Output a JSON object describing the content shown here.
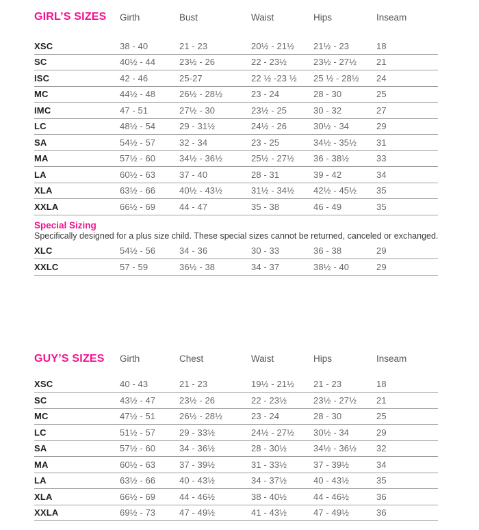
{
  "colors": {
    "accent_pink": "#f2108f",
    "column_header_gray": "#55565a",
    "data_gray": "#66676b",
    "size_label_black": "#1f1f1f",
    "rule_gray": "#9c9c9c"
  },
  "girls_table": {
    "title": "GIRL’S SIZES",
    "columns": [
      "Girth",
      "Bust",
      "Waist",
      "Hips",
      "Inseam"
    ],
    "rows": [
      {
        "size": "XSC",
        "values": [
          "38 - 40",
          "21 - 23",
          "20½ - 21½",
          "21½ - 23",
          "18"
        ]
      },
      {
        "size": "SC",
        "values": [
          "40½ - 44",
          "23½ - 26",
          "22 - 23½",
          "23½ - 27½",
          "21"
        ]
      },
      {
        "size": "ISC",
        "values": [
          "42 - 46",
          "25-27",
          "22 ½ -23 ½",
          "25 ½ - 28½",
          "24"
        ]
      },
      {
        "size": "MC",
        "values": [
          "44½ - 48",
          "26½ - 28½",
          "23 - 24",
          "28 - 30",
          "25"
        ]
      },
      {
        "size": "IMC",
        "values": [
          "47 - 51",
          "27½ - 30",
          "23½ - 25",
          "30 - 32",
          "27"
        ]
      },
      {
        "size": "LC",
        "values": [
          "48½ - 54",
          "29 - 31½",
          "24½ - 26",
          "30½ - 34",
          "29"
        ]
      },
      {
        "size": "SA",
        "values": [
          "54½ - 57",
          "32 - 34",
          "23 - 25",
          "34½ - 35½",
          "31"
        ]
      },
      {
        "size": "MA",
        "values": [
          "57½ - 60",
          "34½ - 36½",
          "25½ - 27½",
          "36 - 38½",
          "33"
        ]
      },
      {
        "size": "LA",
        "values": [
          "60½ - 63",
          "37 - 40",
          "28 - 31",
          "39 - 42",
          "34"
        ]
      },
      {
        "size": "XLA",
        "values": [
          "63½ - 66",
          "40½ - 43½",
          "31½ - 34½",
          "42½ - 45½",
          "35"
        ]
      },
      {
        "size": "XXLA",
        "values": [
          "66½ - 69",
          "44 - 47",
          "35 - 38",
          "46 - 49",
          "35"
        ]
      }
    ]
  },
  "special_sizing": {
    "title": "Special Sizing",
    "description": "Specifically designed for a plus size child. These special sizes cannot be returned, canceled or exchanged.",
    "rows": [
      {
        "size": "XLC",
        "values": [
          "54½ - 56",
          "34 - 36",
          "30 - 33",
          "36 - 38",
          "29"
        ]
      },
      {
        "size": "XXLC",
        "values": [
          "57 - 59",
          "36½ - 38",
          "34 - 37",
          "38½ - 40",
          "29"
        ]
      }
    ]
  },
  "guys_table": {
    "title": "GUY’S SIZES",
    "columns": [
      "Girth",
      "Chest",
      "Waist",
      "Hips",
      "Inseam"
    ],
    "rows": [
      {
        "size": "XSC",
        "values": [
          "40 - 43",
          "21 - 23",
          "19½ - 21½",
          "21 - 23",
          "18"
        ]
      },
      {
        "size": "SC",
        "values": [
          "43½ - 47",
          "23½ - 26",
          "22 - 23½",
          "23½ - 27½",
          "21"
        ]
      },
      {
        "size": "MC",
        "values": [
          "47½ - 51",
          "26½ - 28½",
          "23 - 24",
          "28 - 30",
          "25"
        ]
      },
      {
        "size": "LC",
        "values": [
          "51½ - 57",
          "29 - 33½",
          "24½ - 27½",
          "30½ - 34",
          "29"
        ]
      },
      {
        "size": "SA",
        "values": [
          "57½ - 60",
          "34 - 36½",
          "28 - 30½",
          "34½ - 36½",
          "32"
        ]
      },
      {
        "size": "MA",
        "values": [
          "60½ - 63",
          "37 - 39½",
          "31 - 33½",
          "37 - 39½",
          "34"
        ]
      },
      {
        "size": "LA",
        "values": [
          "63½ - 66",
          "40 - 43½",
          "34 - 37½",
          "40 - 43½",
          "35"
        ]
      },
      {
        "size": "XLA",
        "values": [
          "66½ - 69",
          "44 - 46½",
          "38 - 40½",
          "44 - 46½",
          "36"
        ]
      },
      {
        "size": "XXLA",
        "values": [
          "69½ - 73",
          "47 - 49½",
          "41 - 43½",
          "47 - 49½",
          "36"
        ]
      }
    ]
  }
}
